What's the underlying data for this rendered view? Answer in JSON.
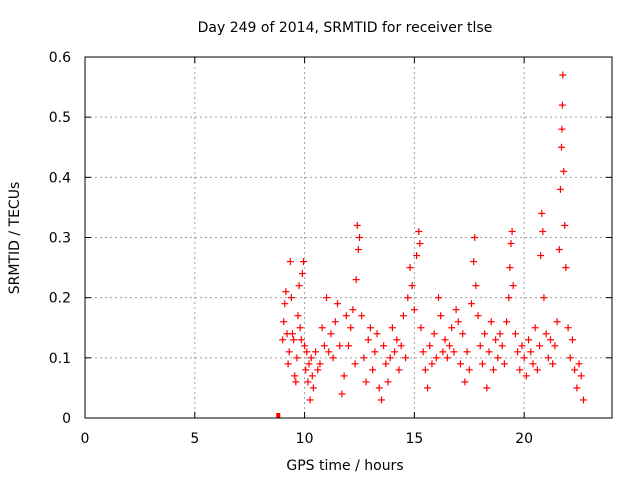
{
  "chart_data": {
    "type": "scatter",
    "title": "Day 249 of 2014, SRMTID for receiver tlse",
    "xlabel": "GPS time / hours",
    "ylabel": "SRMTID / TECUs",
    "xlim": [
      0,
      24
    ],
    "ylim": [
      0,
      0.6
    ],
    "xticks": [
      0,
      5,
      10,
      15,
      20
    ],
    "yticks": [
      0,
      0.1,
      0.2,
      0.3,
      0.4,
      0.5,
      0.6
    ],
    "xtick_labels": [
      "0",
      "5",
      "10",
      "15",
      "20"
    ],
    "ytick_labels": [
      "0",
      "0.1",
      "0.2",
      "0.3",
      "0.4",
      "0.5",
      "0.6"
    ],
    "grid": true,
    "marker": "+",
    "color": "#ff0000",
    "series": [
      {
        "name": "SRMTID",
        "outlier_marker": {
          "x": 8.8,
          "y": 0.0
        },
        "points": [
          [
            9.0,
            0.13
          ],
          [
            9.05,
            0.16
          ],
          [
            9.1,
            0.19
          ],
          [
            9.15,
            0.21
          ],
          [
            9.2,
            0.14
          ],
          [
            9.25,
            0.09
          ],
          [
            9.3,
            0.11
          ],
          [
            9.35,
            0.26
          ],
          [
            9.4,
            0.2
          ],
          [
            9.45,
            0.14
          ],
          [
            9.5,
            0.13
          ],
          [
            9.55,
            0.07
          ],
          [
            9.6,
            0.06
          ],
          [
            9.65,
            0.1
          ],
          [
            9.7,
            0.17
          ],
          [
            9.75,
            0.22
          ],
          [
            9.8,
            0.15
          ],
          [
            9.85,
            0.13
          ],
          [
            9.9,
            0.24
          ],
          [
            9.95,
            0.26
          ],
          [
            10.0,
            0.12
          ],
          [
            10.05,
            0.08
          ],
          [
            10.1,
            0.11
          ],
          [
            10.15,
            0.06
          ],
          [
            10.2,
            0.09
          ],
          [
            10.25,
            0.03
          ],
          [
            10.3,
            0.1
          ],
          [
            10.35,
            0.07
          ],
          [
            10.4,
            0.05
          ],
          [
            10.5,
            0.11
          ],
          [
            10.6,
            0.08
          ],
          [
            10.7,
            0.09
          ],
          [
            10.8,
            0.15
          ],
          [
            10.9,
            0.12
          ],
          [
            11.0,
            0.2
          ],
          [
            11.1,
            0.11
          ],
          [
            11.2,
            0.14
          ],
          [
            11.3,
            0.1
          ],
          [
            11.4,
            0.16
          ],
          [
            11.5,
            0.19
          ],
          [
            11.6,
            0.12
          ],
          [
            11.7,
            0.04
          ],
          [
            11.8,
            0.07
          ],
          [
            11.9,
            0.17
          ],
          [
            12.0,
            0.12
          ],
          [
            12.1,
            0.15
          ],
          [
            12.2,
            0.18
          ],
          [
            12.3,
            0.09
          ],
          [
            12.35,
            0.23
          ],
          [
            12.4,
            0.32
          ],
          [
            12.45,
            0.28
          ],
          [
            12.5,
            0.3
          ],
          [
            12.6,
            0.17
          ],
          [
            12.7,
            0.1
          ],
          [
            12.8,
            0.06
          ],
          [
            12.9,
            0.13
          ],
          [
            13.0,
            0.15
          ],
          [
            13.1,
            0.08
          ],
          [
            13.2,
            0.11
          ],
          [
            13.3,
            0.14
          ],
          [
            13.4,
            0.05
          ],
          [
            13.5,
            0.03
          ],
          [
            13.6,
            0.12
          ],
          [
            13.7,
            0.09
          ],
          [
            13.8,
            0.06
          ],
          [
            13.9,
            0.1
          ],
          [
            14.0,
            0.15
          ],
          [
            14.1,
            0.11
          ],
          [
            14.2,
            0.13
          ],
          [
            14.3,
            0.08
          ],
          [
            14.4,
            0.12
          ],
          [
            14.5,
            0.17
          ],
          [
            14.6,
            0.1
          ],
          [
            14.7,
            0.2
          ],
          [
            14.8,
            0.25
          ],
          [
            14.9,
            0.22
          ],
          [
            15.0,
            0.18
          ],
          [
            15.1,
            0.27
          ],
          [
            15.2,
            0.31
          ],
          [
            15.25,
            0.29
          ],
          [
            15.3,
            0.15
          ],
          [
            15.4,
            0.11
          ],
          [
            15.5,
            0.08
          ],
          [
            15.6,
            0.05
          ],
          [
            15.7,
            0.12
          ],
          [
            15.8,
            0.09
          ],
          [
            15.9,
            0.14
          ],
          [
            16.0,
            0.1
          ],
          [
            16.1,
            0.2
          ],
          [
            16.2,
            0.17
          ],
          [
            16.3,
            0.11
          ],
          [
            16.4,
            0.13
          ],
          [
            16.5,
            0.1
          ],
          [
            16.6,
            0.12
          ],
          [
            16.7,
            0.15
          ],
          [
            16.8,
            0.11
          ],
          [
            16.9,
            0.18
          ],
          [
            17.0,
            0.16
          ],
          [
            17.1,
            0.09
          ],
          [
            17.2,
            0.14
          ],
          [
            17.3,
            0.06
          ],
          [
            17.4,
            0.11
          ],
          [
            17.5,
            0.08
          ],
          [
            17.6,
            0.19
          ],
          [
            17.7,
            0.26
          ],
          [
            17.75,
            0.3
          ],
          [
            17.8,
            0.22
          ],
          [
            17.9,
            0.17
          ],
          [
            18.0,
            0.12
          ],
          [
            18.1,
            0.09
          ],
          [
            18.2,
            0.14
          ],
          [
            18.3,
            0.05
          ],
          [
            18.4,
            0.11
          ],
          [
            18.5,
            0.16
          ],
          [
            18.6,
            0.08
          ],
          [
            18.7,
            0.13
          ],
          [
            18.8,
            0.1
          ],
          [
            18.9,
            0.14
          ],
          [
            19.0,
            0.12
          ],
          [
            19.1,
            0.09
          ],
          [
            19.2,
            0.16
          ],
          [
            19.3,
            0.2
          ],
          [
            19.35,
            0.25
          ],
          [
            19.4,
            0.29
          ],
          [
            19.45,
            0.31
          ],
          [
            19.5,
            0.22
          ],
          [
            19.6,
            0.14
          ],
          [
            19.7,
            0.11
          ],
          [
            19.8,
            0.08
          ],
          [
            19.9,
            0.12
          ],
          [
            20.0,
            0.1
          ],
          [
            20.1,
            0.07
          ],
          [
            20.2,
            0.13
          ],
          [
            20.3,
            0.11
          ],
          [
            20.4,
            0.09
          ],
          [
            20.5,
            0.15
          ],
          [
            20.6,
            0.08
          ],
          [
            20.7,
            0.12
          ],
          [
            20.75,
            0.27
          ],
          [
            20.8,
            0.34
          ],
          [
            20.85,
            0.31
          ],
          [
            20.9,
            0.2
          ],
          [
            21.0,
            0.14
          ],
          [
            21.1,
            0.1
          ],
          [
            21.2,
            0.13
          ],
          [
            21.3,
            0.09
          ],
          [
            21.4,
            0.12
          ],
          [
            21.5,
            0.16
          ],
          [
            21.6,
            0.28
          ],
          [
            21.65,
            0.38
          ],
          [
            21.7,
            0.45
          ],
          [
            21.72,
            0.48
          ],
          [
            21.74,
            0.52
          ],
          [
            21.76,
            0.57
          ],
          [
            21.8,
            0.41
          ],
          [
            21.85,
            0.32
          ],
          [
            21.9,
            0.25
          ],
          [
            22.0,
            0.15
          ],
          [
            22.1,
            0.1
          ],
          [
            22.2,
            0.13
          ],
          [
            22.3,
            0.08
          ],
          [
            22.4,
            0.05
          ],
          [
            22.5,
            0.09
          ],
          [
            22.6,
            0.07
          ],
          [
            22.7,
            0.03
          ]
        ]
      }
    ]
  }
}
